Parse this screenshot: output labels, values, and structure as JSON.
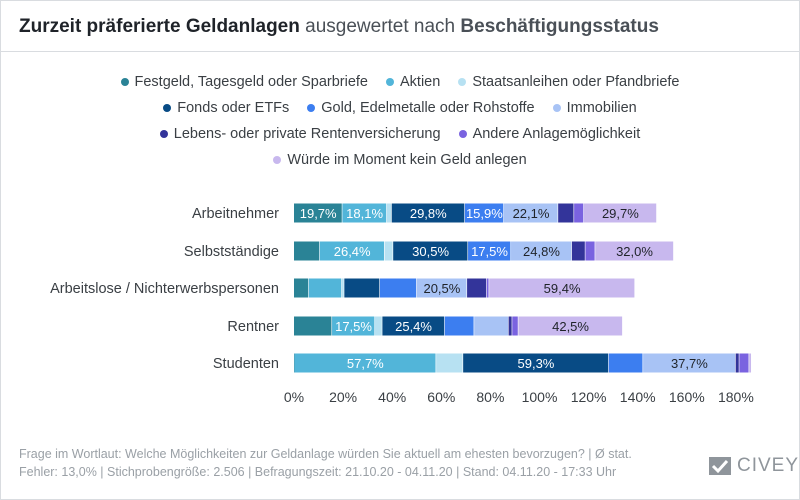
{
  "header": {
    "title_part1": "Zurzeit präferierte Geldanlagen",
    "title_part2": " ausgewertet nach ",
    "title_part3": "Beschäftigungsstatus"
  },
  "colors": [
    "#2a8396",
    "#52b5d9",
    "#b7e1f2",
    "#084b85",
    "#3c7ef0",
    "#a8c3f5",
    "#33349a",
    "#7a63e0",
    "#c8b8ee"
  ],
  "chart_data": {
    "type": "bar",
    "orientation": "horizontal",
    "stacked": true,
    "categories": [
      "Arbeitnehmer",
      "Selbstständige",
      "Arbeitslose / Nichterwerbspersonen",
      "Rentner",
      "Studenten"
    ],
    "series": [
      {
        "name": "Festgeld, Tagesgeld oder Sparbriefe",
        "values": [
          19.7,
          10.5,
          6.0,
          15.5,
          0.2
        ],
        "labels": [
          "19,7%",
          "",
          "",
          "",
          ""
        ]
      },
      {
        "name": "Aktien",
        "values": [
          18.1,
          26.4,
          13.5,
          17.5,
          57.7
        ],
        "labels": [
          "18,1%",
          "26,4%",
          "",
          "17,5%",
          "57,7%"
        ]
      },
      {
        "name": "Staatsanleihen oder Pfandbriefe",
        "values": [
          2.0,
          3.5,
          1.0,
          3.0,
          11.0
        ],
        "labels": [
          "",
          "",
          "",
          "",
          ""
        ]
      },
      {
        "name": "Fonds oder ETFs",
        "values": [
          29.8,
          30.5,
          14.5,
          25.4,
          59.3
        ],
        "labels": [
          "29,8%",
          "30,5%",
          "",
          "25,4%",
          "59,3%"
        ]
      },
      {
        "name": "Gold, Edelmetalle oder Rohstoffe",
        "values": [
          15.9,
          17.5,
          15.0,
          12.0,
          14.0
        ],
        "labels": [
          "15,9%",
          "17,5%",
          "",
          "",
          ""
        ]
      },
      {
        "name": "Immobilien",
        "values": [
          22.1,
          24.8,
          20.5,
          14.0,
          37.7
        ],
        "labels": [
          "22,1%",
          "24,8%",
          "20,5%",
          "",
          "37,7%"
        ]
      },
      {
        "name": "Lebens- oder private Rentenversicherung",
        "values": [
          6.5,
          5.5,
          8.0,
          1.5,
          1.5
        ],
        "labels": [
          "",
          "",
          "",
          "",
          ""
        ]
      },
      {
        "name": "Andere Anlagemöglichkeit",
        "values": [
          4.0,
          4.0,
          1.0,
          2.5,
          4.0
        ],
        "labels": [
          "",
          "",
          "",
          "",
          ""
        ]
      },
      {
        "name": "Würde im Moment kein Geld anlegen",
        "values": [
          29.7,
          32.0,
          59.4,
          42.5,
          1.0
        ],
        "labels": [
          "29,7%",
          "32,0%",
          "59,4%",
          "42,5%",
          ""
        ]
      }
    ],
    "xlim": [
      0,
      180
    ],
    "xticks": [
      "0%",
      "20%",
      "40%",
      "60%",
      "80%",
      "100%",
      "120%",
      "140%",
      "160%",
      "180%"
    ],
    "xtick_values": [
      0,
      20,
      40,
      60,
      80,
      100,
      120,
      140,
      160,
      180
    ],
    "legend_position": "top",
    "grid": false
  },
  "footer": {
    "line1": "Frage im Wortlaut: Welche Möglichkeiten zur Geldanlage würden Sie aktuell am ehesten bevorzugen? | Ø stat.",
    "line2": "Fehler: 13,0% | Stichprobengröße: 2.506 | Befragungszeit: 21.10.20 - 04.11.20 | Stand: 04.11.20 - 17:33 Uhr"
  },
  "brand": {
    "name": "CIVEY"
  }
}
